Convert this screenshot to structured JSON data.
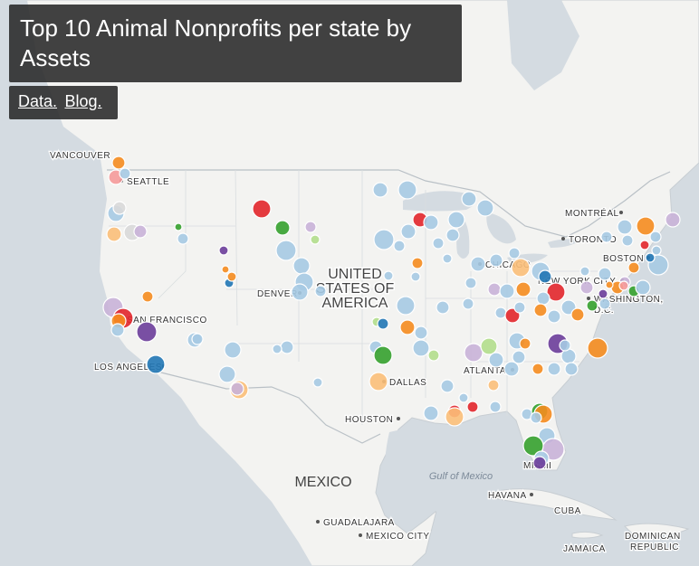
{
  "title": "Top 10 Animal Nonprofits per state by Assets",
  "links": {
    "data": "Data.",
    "blog": "Blog."
  },
  "map": {
    "country_label": [
      "UNITED",
      "STATES OF",
      "AMERICA"
    ],
    "mexico": "MEXICO",
    "gulf": "Gulf of Mexico",
    "cities": [
      {
        "name": "VANCOUVER"
      },
      {
        "name": "SEATTLE"
      },
      {
        "name": "SAN FRANCISCO"
      },
      {
        "name": "LOS ANGELES"
      },
      {
        "name": "DENVER"
      },
      {
        "name": "DALLAS"
      },
      {
        "name": "HOUSTON"
      },
      {
        "name": "CHICAGO"
      },
      {
        "name": "ATLANTA"
      },
      {
        "name": "MIAMI"
      },
      {
        "name": "TORONTO"
      },
      {
        "name": "MONTRÉAL"
      },
      {
        "name": "BOSTON"
      },
      {
        "name": "NEW YORK CITY"
      },
      {
        "name": "WASHINGTON,"
      },
      {
        "name": "D.C."
      },
      {
        "name": "HAVANA"
      },
      {
        "name": "CUBA"
      },
      {
        "name": "GUADALAJARA"
      },
      {
        "name": "MEXICO CITY"
      },
      {
        "name": "JAMAICA"
      },
      {
        "name": "DOMINICAN"
      },
      {
        "name": "REPUBLIC"
      }
    ]
  },
  "colors": {
    "land": "#f4f4f2",
    "water": "#d6dde3",
    "light_blue": "#a6cae3",
    "orange": "#f58c1f",
    "red": "#e2262b",
    "purple": "#6b3d9a",
    "green": "#35a12e",
    "dark_blue": "#2177b5",
    "pink": "#f59a9a",
    "lavender": "#c9b3d8",
    "light_orange": "#fbbf79",
    "light_green": "#b3de8c",
    "gray": "#d9d9d9"
  }
}
